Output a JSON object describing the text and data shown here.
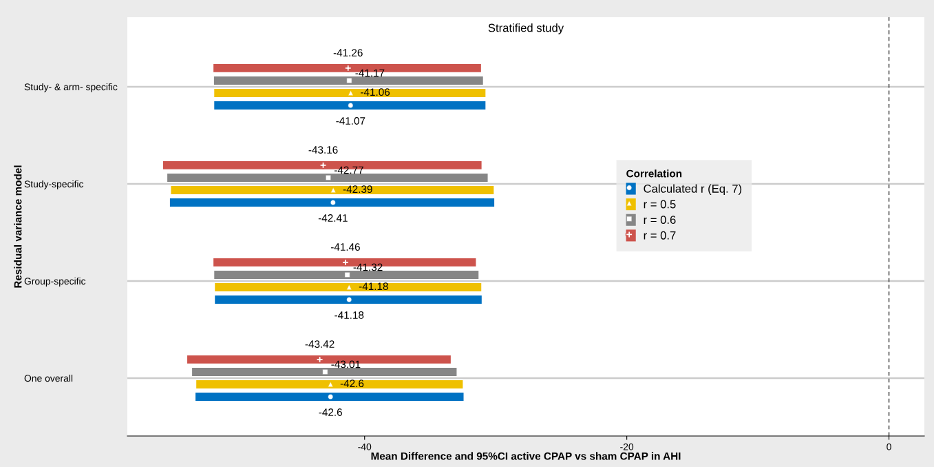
{
  "chart_data": {
    "type": "scatter",
    "orientation": "horizontal",
    "title": "Stratified study",
    "xlabel": "Mean Difference and 95%CI active CPAP vs sham CPAP in AHI",
    "ylabel": "Residual variance model",
    "legend_title": "Correlation",
    "categories": [
      "Study- & arm- specific",
      "Study-specific",
      "Group-specific",
      "One overall"
    ],
    "series": [
      {
        "name": "Calculated r (Eq. 7)",
        "color": "#0072c3",
        "marker": "circle",
        "values": [
          -41.07,
          -42.41,
          -41.18,
          -42.6
        ],
        "errors": [
          [
            -51.47,
            -30.78
          ],
          [
            -54.85,
            -30.11
          ],
          [
            -51.42,
            -31.07
          ],
          [
            -52.9,
            -32.45
          ]
        ]
      },
      {
        "name": "r = 0.5",
        "color": "#efc000",
        "marker": "triangle",
        "values": [
          -41.06,
          -42.39,
          -41.18,
          -42.6
        ],
        "errors": [
          [
            -51.47,
            -30.78
          ],
          [
            -54.77,
            -30.15
          ],
          [
            -51.42,
            -31.1
          ],
          [
            -52.84,
            -32.51
          ]
        ]
      },
      {
        "name": "r = 0.6",
        "color": "#868686",
        "marker": "square",
        "values": [
          -41.17,
          -42.77,
          -41.32,
          -43.01
        ],
        "errors": [
          [
            -51.49,
            -30.97
          ],
          [
            -55.05,
            -30.61
          ],
          [
            -51.47,
            -31.31
          ],
          [
            -53.16,
            -32.98
          ]
        ]
      },
      {
        "name": "r = 0.7",
        "color": "#cd534c",
        "marker": "cross",
        "values": [
          -41.26,
          -43.16,
          -41.46,
          -43.42
        ],
        "errors": [
          [
            -51.53,
            -31.12
          ],
          [
            -55.37,
            -31.08
          ],
          [
            -51.53,
            -31.51
          ],
          [
            -53.53,
            -33.43
          ]
        ]
      }
    ],
    "xlim": [
      -58.1,
      2.7
    ],
    "xticks": [
      -40,
      -20,
      0
    ],
    "ref_lines": [
      {
        "axis": "x",
        "value": 0,
        "label": null,
        "color": "#333333",
        "line_style": "dashed"
      }
    ],
    "data_labels": true,
    "grid": "y",
    "legend": "right"
  }
}
